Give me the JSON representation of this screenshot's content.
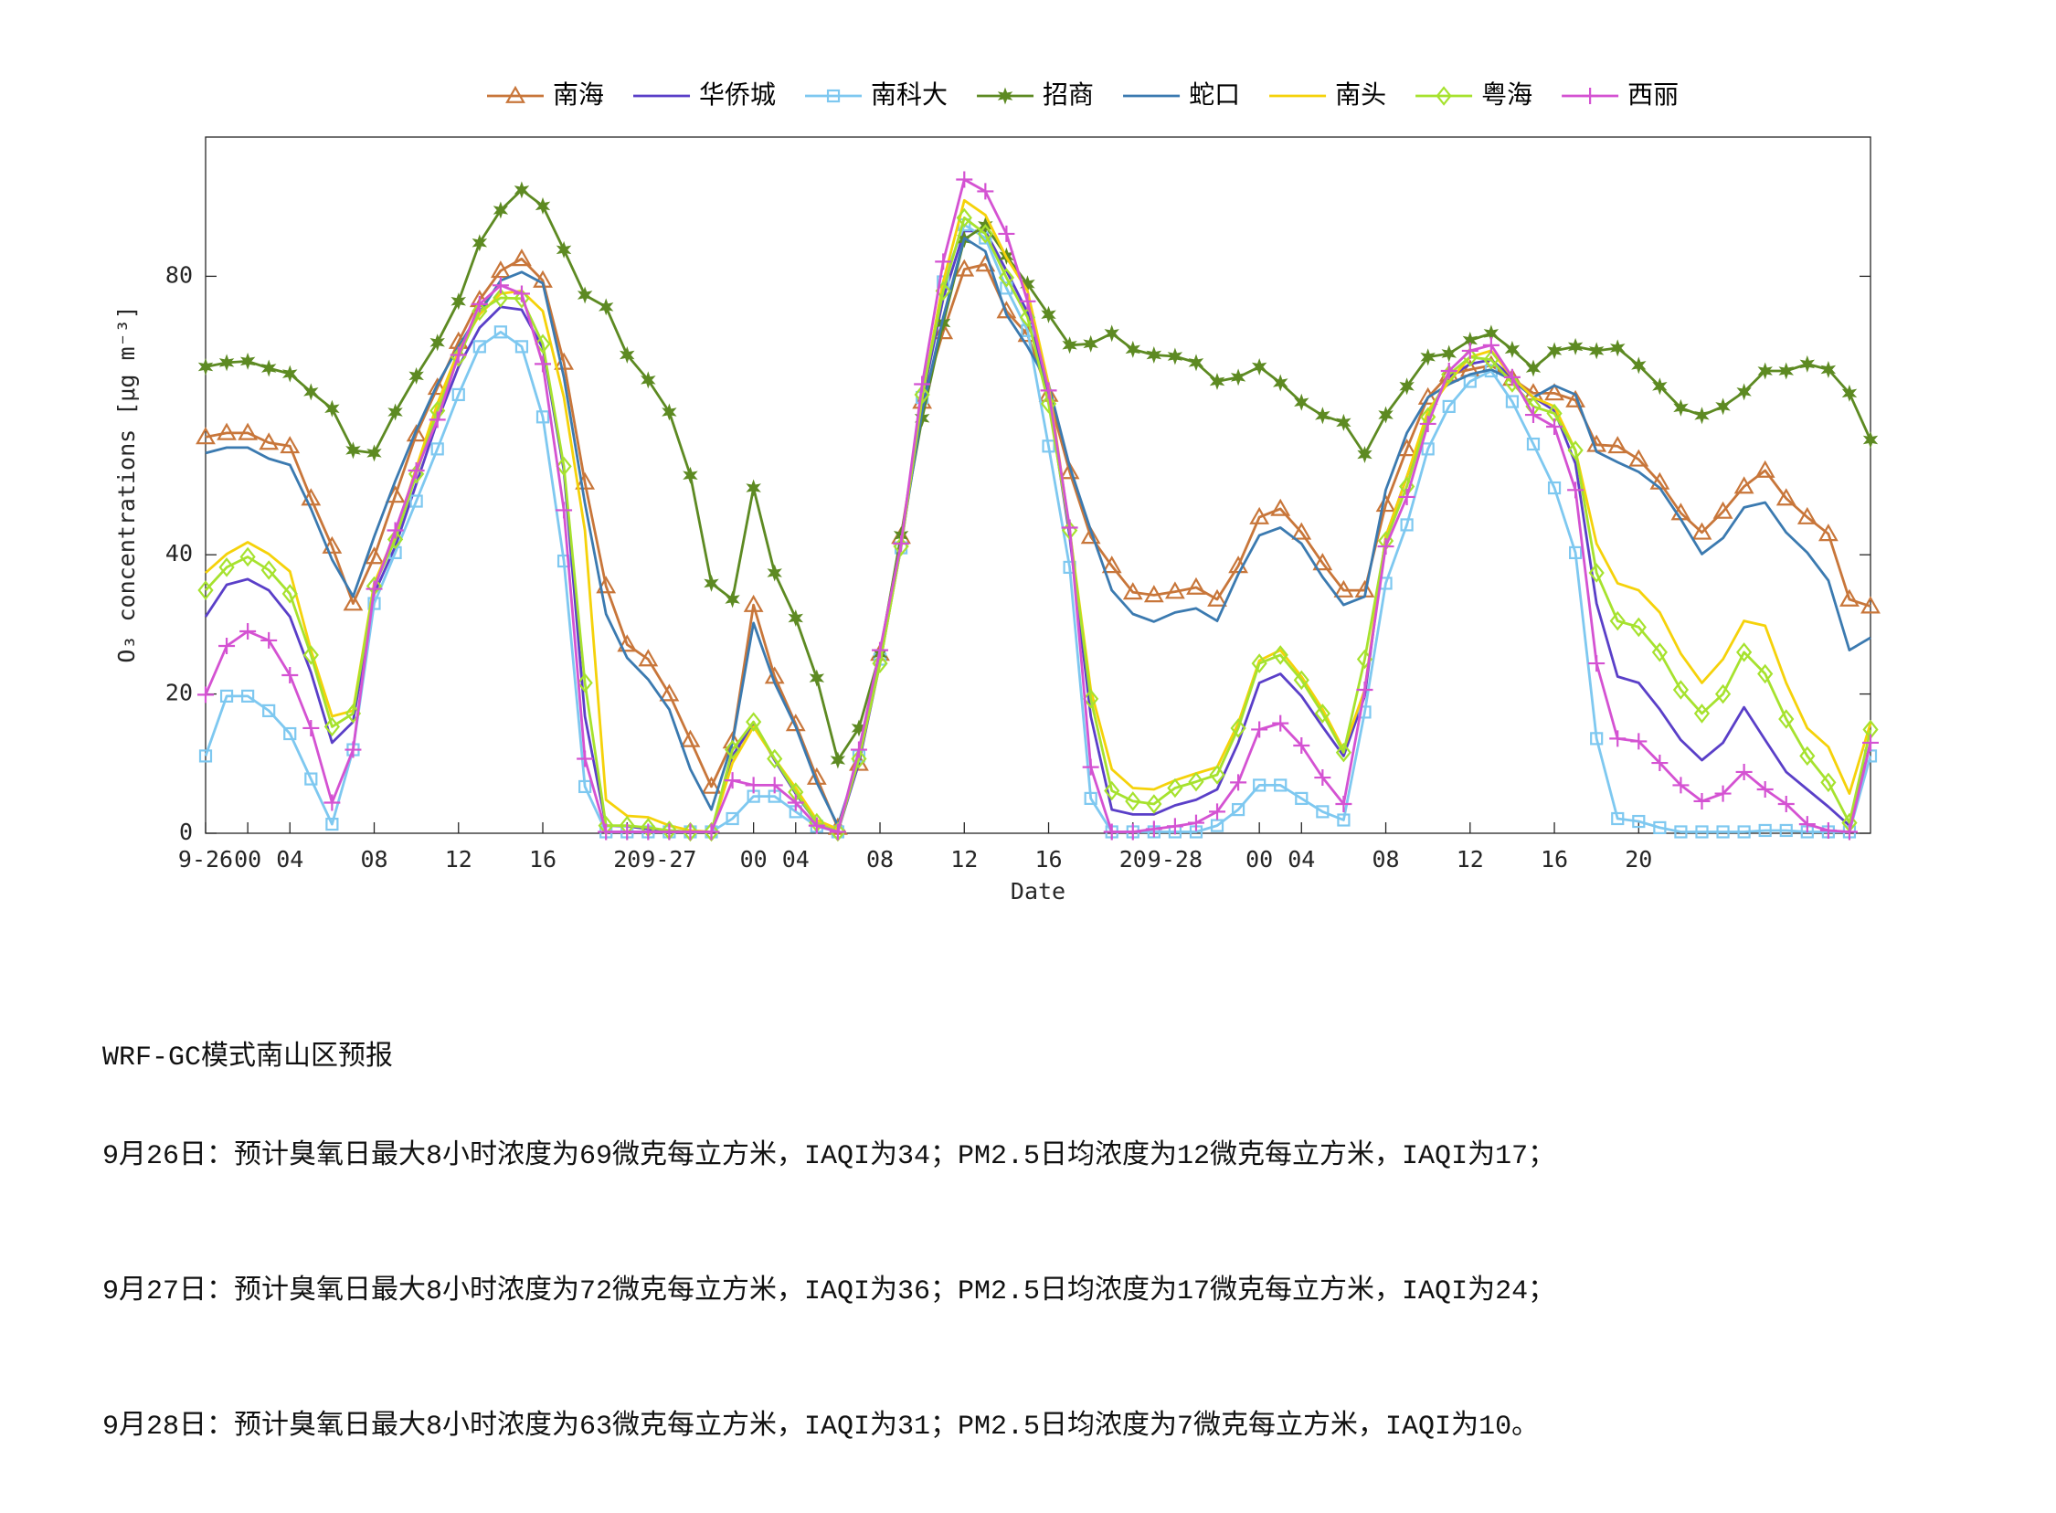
{
  "chart_data": {
    "type": "line",
    "xlabel": "Date",
    "ylabel": "O₃ concentrations [μg m⁻³]",
    "xlim": [
      0,
      79
    ],
    "xticks": [
      {
        "value": 0,
        "label": "9-26"
      },
      {
        "value": 2,
        "label": "00"
      },
      {
        "value": 4,
        "label": "04"
      },
      {
        "value": 8,
        "label": "08"
      },
      {
        "value": 12,
        "label": "12"
      },
      {
        "value": 16,
        "label": "16"
      },
      {
        "value": 20,
        "label": "20"
      },
      {
        "value": 22,
        "label": "9-27"
      },
      {
        "value": 26,
        "label": "00"
      },
      {
        "value": 28,
        "label": "04"
      },
      {
        "value": 32,
        "label": "08"
      },
      {
        "value": 36,
        "label": "12"
      },
      {
        "value": 40,
        "label": "16"
      },
      {
        "value": 44,
        "label": "20"
      },
      {
        "value": 46,
        "label": "9-28"
      },
      {
        "value": 50,
        "label": "00"
      },
      {
        "value": 52,
        "label": "04"
      },
      {
        "value": 56,
        "label": "08"
      },
      {
        "value": 60,
        "label": "12"
      },
      {
        "value": 64,
        "label": "16"
      },
      {
        "value": 68,
        "label": "20"
      }
    ],
    "ylim": [
      0,
      100
    ],
    "yticks": [
      0,
      20,
      40,
      80
    ],
    "grid": false,
    "legend": "top",
    "series": [
      {
        "name": "南海",
        "color": "#c8763a",
        "marker": "triangle",
        "values": [
          56.9,
          57.5,
          57.5,
          56.1,
          55.6,
          48.1,
          41.2,
          33,
          39.7,
          48.5,
          57.3,
          64,
          70.6,
          76.6,
          80.8,
          82.5,
          79.4,
          67.6,
          50.4,
          35.5,
          27.1,
          25,
          20,
          13.4,
          6.7,
          13.2,
          32.8,
          22.5,
          15.7,
          8,
          0.8,
          10,
          25.8,
          42.6,
          62,
          72,
          81,
          81.7,
          75,
          71.6,
          63,
          51.9,
          42.6,
          38.4,
          34.6,
          34.2,
          34.7,
          35.3,
          33.6,
          38.4,
          45.4,
          46.6,
          43.2,
          38.8,
          34.9,
          34.9,
          47.2,
          55.2,
          62.6,
          65.9,
          66.6,
          67.2,
          65.3,
          63.2,
          63.2,
          62.2,
          55.8,
          55.6,
          53.7,
          50.4,
          46,
          43.2,
          46.2,
          49.8,
          52.1,
          48.1,
          45.4,
          43,
          33.6,
          32.6
        ]
      },
      {
        "name": "华侨城",
        "color": "#5a3fc8",
        "marker": "none",
        "values": [
          31.1,
          35.7,
          36.5,
          34.9,
          31.1,
          23.1,
          13,
          16,
          34.4,
          41.2,
          50.2,
          59.2,
          67,
          72.6,
          75.6,
          75.2,
          69.7,
          52.1,
          16.8,
          1.1,
          1,
          0.6,
          0.4,
          0.2,
          0.2,
          11.1,
          15.8,
          10.5,
          5.7,
          1.5,
          0.2,
          10.1,
          24.4,
          41.2,
          62.2,
          76.8,
          86.5,
          86.5,
          80.8,
          74.8,
          62.6,
          42.6,
          16.8,
          3.4,
          2.7,
          2.7,
          4,
          4.8,
          6.3,
          13,
          21.6,
          22.9,
          19.7,
          15.3,
          11.1,
          19.7,
          42.6,
          51.2,
          59.8,
          65.5,
          67.4,
          68,
          65.5,
          62.6,
          60.7,
          53.1,
          33,
          22.5,
          21.6,
          17.8,
          13.4,
          10.5,
          13,
          18.1,
          13.4,
          8.8,
          6.3,
          3.8,
          1.1,
          13
        ]
      },
      {
        "name": "南科大",
        "color": "#7ec8f0",
        "marker": "square",
        "values": [
          11.1,
          19.7,
          19.7,
          17.6,
          14.3,
          7.8,
          1.3,
          12,
          33,
          40.3,
          47.7,
          55.2,
          63,
          69.9,
          72,
          69.9,
          59.8,
          39.1,
          6.7,
          0.2,
          0.2,
          0.2,
          0.2,
          0.2,
          0.2,
          2.1,
          5.3,
          5.3,
          3.1,
          1,
          0.2,
          11.1,
          25,
          41,
          62.6,
          79.2,
          87.4,
          85.5,
          78.3,
          72.2,
          55.6,
          38.2,
          5,
          0.2,
          0.2,
          0.2,
          0.2,
          0.2,
          1.1,
          3.4,
          6.9,
          6.9,
          5,
          3.1,
          1.9,
          17.4,
          35.9,
          44.3,
          55.2,
          61.3,
          64.9,
          66.4,
          62,
          55.9,
          49.6,
          40.3,
          13.6,
          2.1,
          1.7,
          0.8,
          0.2,
          0.2,
          0.2,
          0.2,
          0.4,
          0.4,
          0.2,
          0.2,
          0.2,
          11.1
        ]
      },
      {
        "name": "招商",
        "color": "#5d8a22",
        "marker": "star",
        "values": [
          67,
          67.6,
          67.8,
          66.8,
          66,
          63.4,
          61,
          55,
          54.6,
          60.5,
          65.7,
          70.5,
          76.4,
          84.8,
          89.5,
          92.4,
          90.1,
          83.8,
          77.3,
          75.6,
          68.7,
          65.1,
          60.5,
          51.4,
          35.9,
          33.6,
          49.6,
          37.4,
          30.9,
          22.3,
          10.5,
          15.1,
          25.8,
          42.8,
          59.6,
          73.3,
          85.3,
          87.3,
          82.9,
          78.9,
          74.5,
          70.1,
          70.3,
          71.8,
          69.5,
          68.7,
          68.5,
          67.6,
          64.9,
          65.5,
          67,
          64.7,
          61.9,
          60,
          59,
          54.4,
          60.1,
          64.2,
          68.4,
          68.9,
          70.8,
          71.8,
          69.5,
          66.8,
          69.3,
          69.9,
          69.3,
          69.7,
          67.2,
          64.2,
          61.1,
          60,
          61.3,
          63.4,
          66.4,
          66.4,
          67.4,
          66.6,
          63.2,
          56.5
        ]
      },
      {
        "name": "蛇口",
        "color": "#3b7ab0",
        "marker": "none",
        "values": [
          54.6,
          55.4,
          55.4,
          53.8,
          52.9,
          46.6,
          39.3,
          34,
          42.6,
          50.6,
          57.9,
          64.5,
          69.9,
          74.8,
          79.4,
          80.6,
          79,
          65.5,
          47.4,
          31.5,
          25.2,
          22.1,
          17.8,
          9.2,
          3.4,
          13,
          30.2,
          21.6,
          15.3,
          7.3,
          1.1,
          10.7,
          26,
          41.6,
          60.7,
          74.1,
          85.5,
          83.6,
          74.5,
          69.9,
          64.5,
          52.7,
          43.5,
          34.9,
          31.5,
          30.4,
          31.7,
          32.3,
          30.5,
          37.2,
          42.8,
          43.9,
          41.6,
          36.8,
          32.8,
          34,
          49.3,
          57.5,
          62.6,
          64.5,
          65.9,
          66.6,
          65.1,
          62.6,
          64.3,
          63,
          54.8,
          53.3,
          51.9,
          49.6,
          45.1,
          40.1,
          42.4,
          46.8,
          47.5,
          43.2,
          40.3,
          36.3,
          26.3,
          28.1
        ]
      },
      {
        "name": "南头",
        "color": "#f5d20a",
        "marker": "none",
        "values": [
          37.4,
          40.1,
          41.8,
          40.1,
          37.6,
          26.3,
          16.8,
          17.6,
          35.9,
          43,
          52.5,
          61.7,
          69.3,
          74.5,
          77.5,
          77.9,
          75,
          62.6,
          43.5,
          4.8,
          2.5,
          2.3,
          1.1,
          0.4,
          0.2,
          10.1,
          15.3,
          10.7,
          6.5,
          1.9,
          0.6,
          10.7,
          24.4,
          41.2,
          62.6,
          79.2,
          90.9,
          88.8,
          82.7,
          77.9,
          64.5,
          43.5,
          20.6,
          9.2,
          6.5,
          6.3,
          7.6,
          8.6,
          9.5,
          15.8,
          24.8,
          26.3,
          22.5,
          17.8,
          12,
          20.6,
          42.6,
          51.2,
          60.7,
          64.9,
          68.4,
          69.3,
          65.5,
          62.6,
          61.3,
          55,
          41.6,
          35.9,
          34.9,
          31.7,
          25.8,
          21.6,
          25,
          30.5,
          29.8,
          21.6,
          15.1,
          12.4,
          5.7,
          15.8
        ]
      },
      {
        "name": "粤海",
        "color": "#a6e22e",
        "marker": "diamond",
        "values": [
          34.9,
          38.2,
          39.7,
          37.8,
          34.4,
          25.6,
          15.3,
          17.2,
          35.5,
          42.2,
          51.6,
          60.7,
          68.4,
          75,
          76.9,
          76.8,
          70.3,
          52.7,
          21.6,
          1.1,
          1.1,
          0.8,
          0.4,
          0.2,
          0.2,
          12,
          16,
          10.7,
          5.9,
          1.5,
          0.2,
          10.7,
          24.4,
          41.2,
          63,
          77.9,
          88.4,
          86.1,
          79.8,
          74.1,
          61.7,
          43.5,
          19.3,
          6.1,
          4.6,
          4.2,
          6.5,
          7.4,
          8.4,
          15.1,
          24.4,
          25.6,
          22,
          17.2,
          11.6,
          25,
          42,
          49.8,
          59.8,
          65.9,
          68.4,
          68,
          64.7,
          61.3,
          60.3,
          55,
          37.4,
          30.5,
          29.6,
          26,
          20.6,
          17.2,
          20,
          26,
          22.9,
          16.4,
          11.1,
          7.3,
          1.5,
          14.9
        ]
      },
      {
        "name": "西丽",
        "color": "#d452d2",
        "marker": "plus",
        "values": [
          19.9,
          26.9,
          29,
          27.7,
          22.7,
          15.1,
          4.4,
          12,
          35.1,
          43.5,
          52.1,
          59.4,
          68.7,
          76,
          78.7,
          77.5,
          67.4,
          46.4,
          10.7,
          0.2,
          0.2,
          0.2,
          0.2,
          0.2,
          0.2,
          7.6,
          6.9,
          6.9,
          4.4,
          1.1,
          0.2,
          12,
          26.3,
          41.6,
          64.5,
          82.1,
          93.9,
          92.2,
          86.1,
          76.4,
          63.6,
          43.9,
          9.5,
          0.2,
          0.2,
          0.6,
          1,
          1.5,
          3.1,
          7.3,
          14.9,
          15.8,
          12.6,
          8,
          4.2,
          20.6,
          41.2,
          48.3,
          58.8,
          66.4,
          69.3,
          70.1,
          65.5,
          60.1,
          58.4,
          49.3,
          24.4,
          13.6,
          13.2,
          10.1,
          6.9,
          4.6,
          5.7,
          8.8,
          6.3,
          4.2,
          1.3,
          0.4,
          0.2,
          13
        ]
      }
    ]
  },
  "forecast": {
    "heading": "WRF-GC模式南山区预报",
    "lines": [
      "9月26日：预计臭氧日最大8小时浓度为69微克每立方米，IAQI为34；PM2.5日均浓度为12微克每立方米，IAQI为17；",
      "9月27日：预计臭氧日最大8小时浓度为72微克每立方米，IAQI为36；PM2.5日均浓度为17微克每立方米，IAQI为24；",
      "9月28日：预计臭氧日最大8小时浓度为63微克每立方米，IAQI为31；PM2.5日均浓度为7微克每立方米，IAQI为10。"
    ]
  }
}
